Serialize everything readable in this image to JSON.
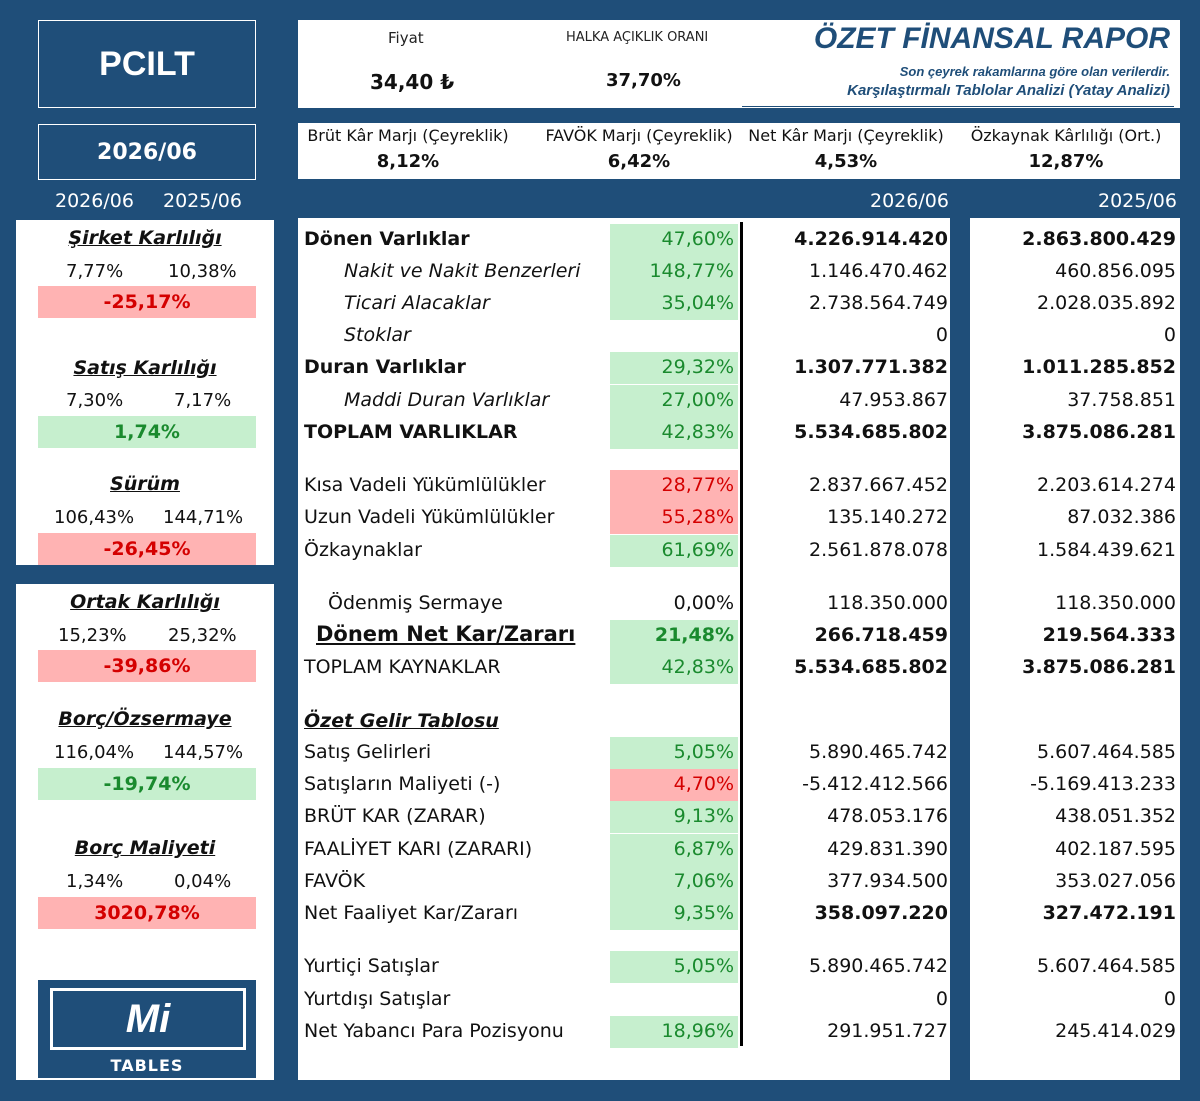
{
  "ticker": "PCILT",
  "period": "2026/06",
  "left_headers": [
    "2026/06",
    "2025/06"
  ],
  "price": {
    "label": "Fiyat",
    "value": "34,40 ₺"
  },
  "float": {
    "label": "HALKA AÇIKLIK ORANI",
    "value": "37,70%"
  },
  "report": {
    "title": "ÖZET FİNANSAL RAPOR",
    "line1": "Son çeyrek rakamlarına göre olan verilerdir.",
    "line2": "Karşılaştırmalı Tablolar Analizi (Yatay Analizi)"
  },
  "metrics": [
    {
      "label": "Brüt Kâr Marjı (Çeyreklik)",
      "value": "8,12%"
    },
    {
      "label": "FAVÖK Marjı (Çeyreklik)",
      "value": "6,42%"
    },
    {
      "label": "Net Kâr Marjı (Çeyreklik)",
      "value": "4,53%"
    },
    {
      "label": "Özkaynak Kârlılığı (Ort.)",
      "value": "12,87%"
    }
  ],
  "col_headers": [
    "2026/06",
    "2025/06"
  ],
  "ratios_card1": [
    {
      "title": "Şirket Karlılığı",
      "v1": "7,77%",
      "v2": "10,38%",
      "chg": "-25,17%",
      "sign": "neg"
    },
    {
      "title": "Satış Karlılığı",
      "v1": "7,30%",
      "v2": "7,17%",
      "chg": "1,74%",
      "sign": "pos"
    },
    {
      "title": "Sürüm",
      "v1": "106,43%",
      "v2": "144,71%",
      "chg": "-26,45%",
      "sign": "neg"
    }
  ],
  "ratios_card2": [
    {
      "title": "Ortak Karlılığı",
      "v1": "15,23%",
      "v2": "25,32%",
      "chg": "-39,86%",
      "sign": "neg"
    },
    {
      "title": "Borç/Özsermaye",
      "v1": "116,04%",
      "v2": "144,57%",
      "chg": "-19,74%",
      "sign": "pos"
    },
    {
      "title": "Borç Maliyeti",
      "v1": "1,34%",
      "v2": "0,04%",
      "chg": "3020,78%",
      "sign": "neg"
    }
  ],
  "rows": [
    {
      "label": "Dönen Varlıklar",
      "pct": "47,60%",
      "v1": "4.226.914.420",
      "v2": "2.863.800.429"
    },
    {
      "label": "Nakit ve Nakit Benzerleri",
      "pct": "148,77%",
      "v1": "1.146.470.462",
      "v2": "460.856.095"
    },
    {
      "label": "Ticari Alacaklar",
      "pct": "35,04%",
      "v1": "2.738.564.749",
      "v2": "2.028.035.892"
    },
    {
      "label": "Stoklar",
      "pct": "",
      "v1": "0",
      "v2": "0"
    },
    {
      "label": "Duran Varlıklar",
      "pct": "29,32%",
      "v1": "1.307.771.382",
      "v2": "1.011.285.852"
    },
    {
      "label": "Maddi Duran Varlıklar",
      "pct": "27,00%",
      "v1": "47.953.867",
      "v2": "37.758.851"
    },
    {
      "label": "TOPLAM VARLIKLAR",
      "pct": "42,83%",
      "v1": "5.534.685.802",
      "v2": "3.875.086.281"
    },
    {
      "label": "Kısa Vadeli Yükümlülükler",
      "pct": "28,77%",
      "v1": "2.837.667.452",
      "v2": "2.203.614.274"
    },
    {
      "label": "Uzun Vadeli Yükümlülükler",
      "pct": "55,28%",
      "v1": "135.140.272",
      "v2": "87.032.386"
    },
    {
      "label": "Özkaynaklar",
      "pct": "61,69%",
      "v1": "2.561.878.078",
      "v2": "1.584.439.621"
    },
    {
      "label": "Ödenmiş Sermaye",
      "pct": "0,00%",
      "v1": "118.350.000",
      "v2": "118.350.000"
    },
    {
      "label": "Dönem Net Kar/Zararı",
      "pct": "21,48%",
      "v1": "266.718.459",
      "v2": "219.564.333"
    },
    {
      "label": "TOPLAM KAYNAKLAR",
      "pct": "42,83%",
      "v1": "5.534.685.802",
      "v2": "3.875.086.281"
    },
    {
      "label": "Özet Gelir Tablosu",
      "pct": "",
      "v1": "",
      "v2": ""
    },
    {
      "label": "Satış Gelirleri",
      "pct": "5,05%",
      "v1": "5.890.465.742",
      "v2": "5.607.464.585"
    },
    {
      "label": "Satışların Maliyeti (-)",
      "pct": "4,70%",
      "v1": "-5.412.412.566",
      "v2": "-5.169.413.233"
    },
    {
      "label": "BRÜT KAR (ZARAR)",
      "pct": "9,13%",
      "v1": "478.053.176",
      "v2": "438.051.352"
    },
    {
      "label": "FAALİYET KARI (ZARARI)",
      "pct": "6,87%",
      "v1": "429.831.390",
      "v2": "402.187.595"
    },
    {
      "label": "FAVÖK",
      "pct": "7,06%",
      "v1": "377.934.500",
      "v2": "353.027.056"
    },
    {
      "label": "Net Faaliyet Kar/Zararı",
      "pct": "9,35%",
      "v1": "358.097.220",
      "v2": "327.472.191"
    },
    {
      "label": "Yurtiçi Satışlar",
      "pct": "5,05%",
      "v1": "5.890.465.742",
      "v2": "5.607.464.585"
    },
    {
      "label": "Yurtdışı Satışlar",
      "pct": "",
      "v1": "0",
      "v2": "0"
    },
    {
      "label": "Net Yabancı Para Pozisyonu",
      "pct": "18,96%",
      "v1": "291.951.727",
      "v2": "245.414.029"
    }
  ],
  "logo": {
    "mark": "Mi",
    "text": "TABLES"
  }
}
